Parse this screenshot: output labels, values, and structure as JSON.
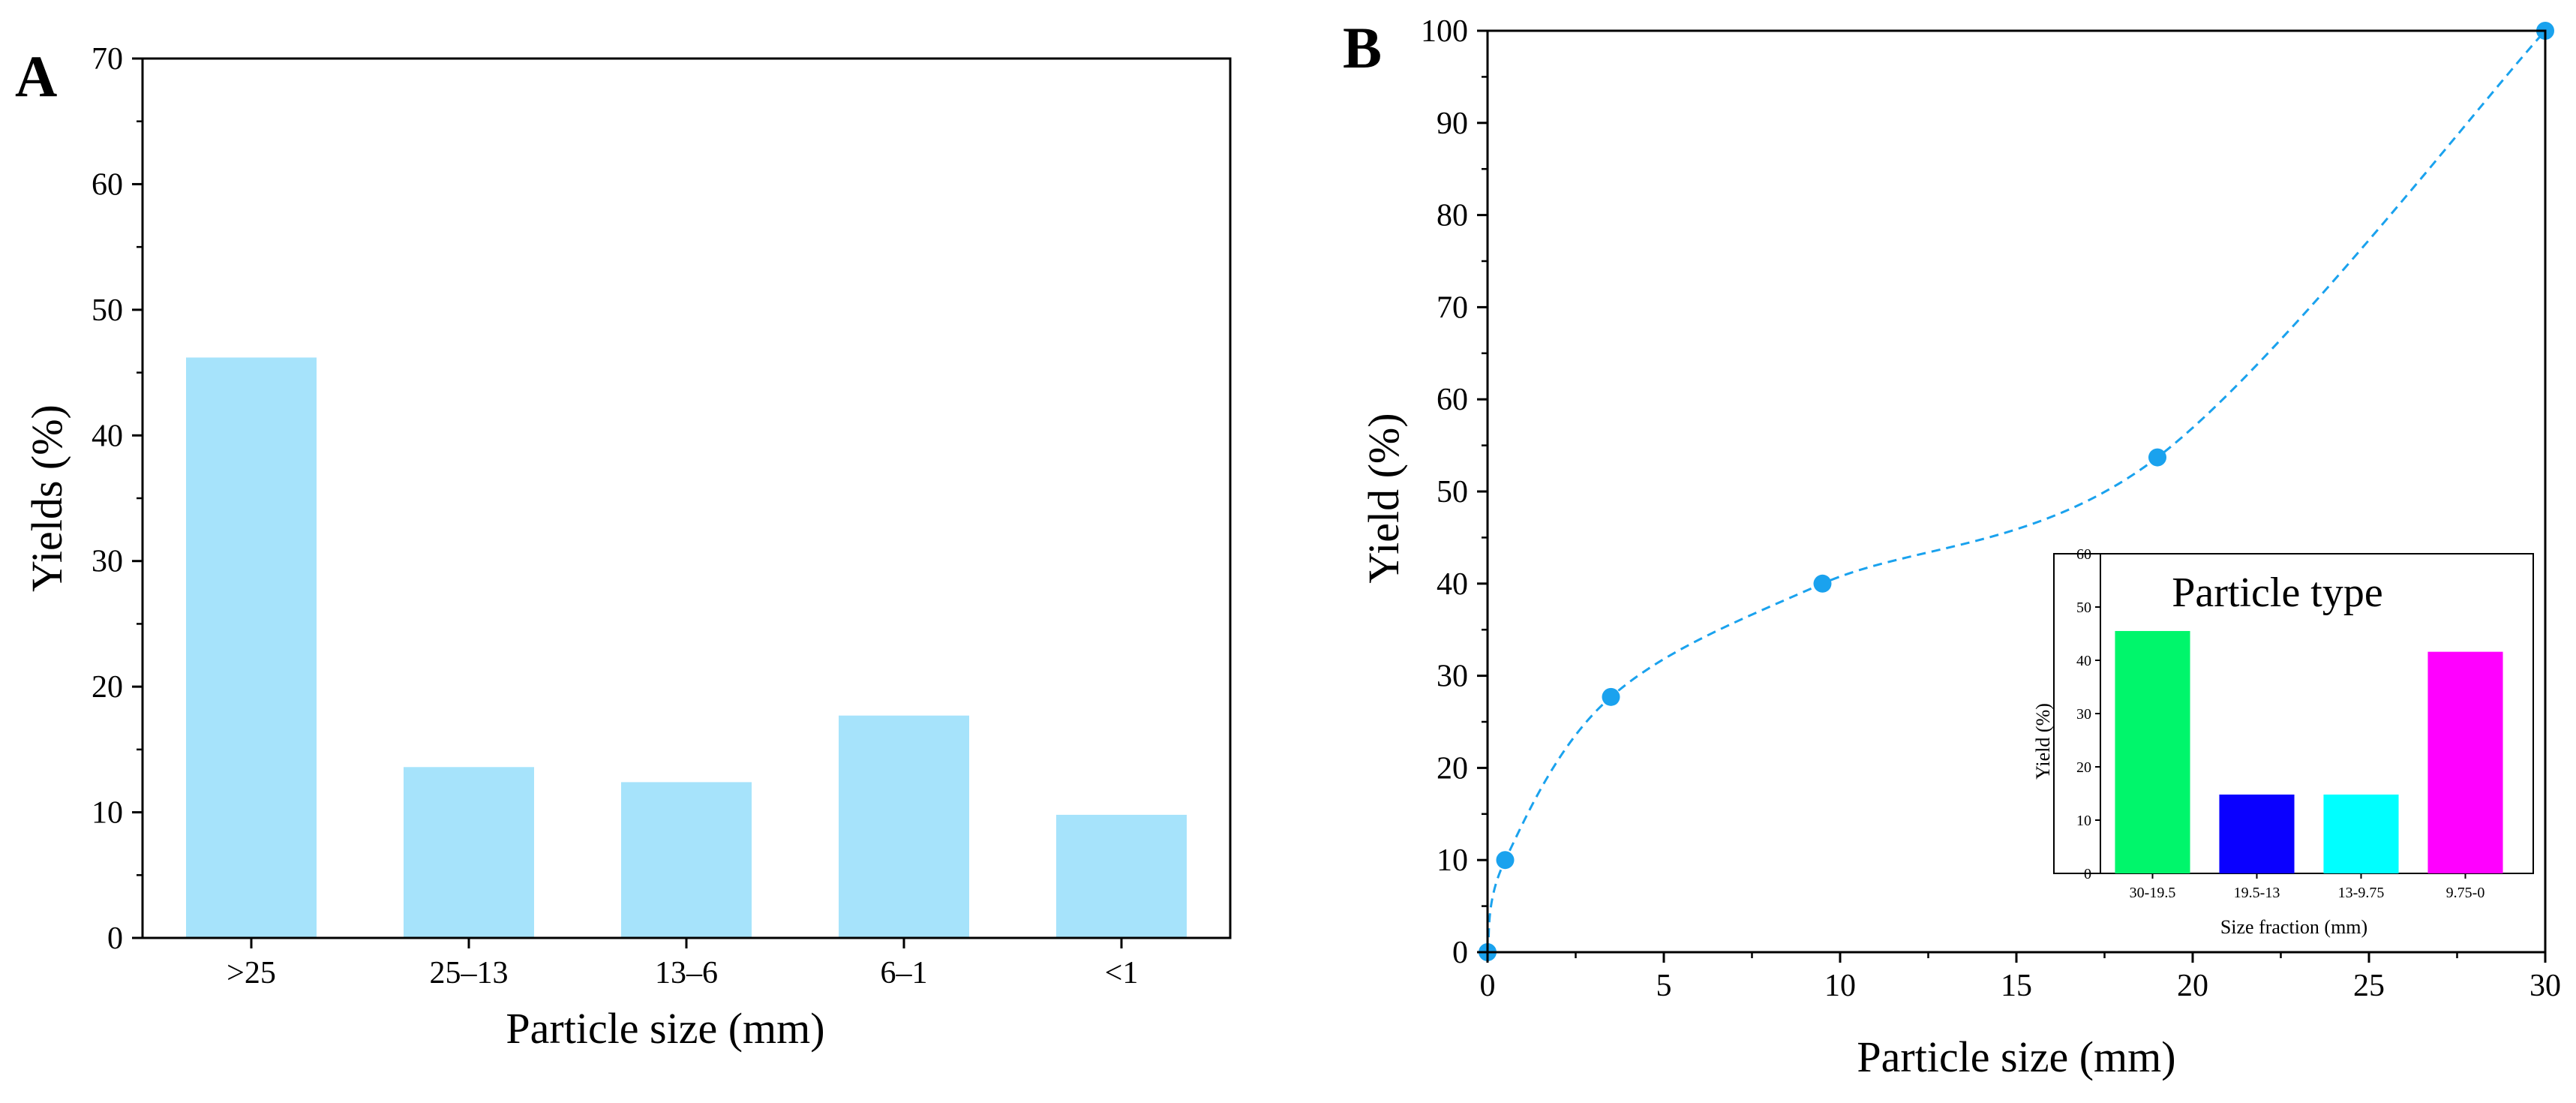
{
  "chart_data": [
    {
      "panel": "A",
      "type": "bar",
      "categories": [
        ">25",
        "25–13",
        "13–6",
        "6–1",
        "<1"
      ],
      "values": [
        46.2,
        13.6,
        12.4,
        17.7,
        9.8
      ],
      "xlabel": "Particle size (mm)",
      "ylabel": "Yields (%)",
      "ylim": [
        0,
        70
      ],
      "yticks": [
        "0",
        "10",
        "20",
        "30",
        "40",
        "50",
        "60",
        "70"
      ],
      "bar_color": "#a6e3fb"
    },
    {
      "panel": "B",
      "type": "line",
      "x": [
        0,
        0.5,
        3.5,
        9.5,
        19,
        30
      ],
      "y": [
        0,
        10,
        27.7,
        40,
        53.7,
        100
      ],
      "xlabel": "Particle size (mm)",
      "ylabel": "Yield (%)",
      "xlim": [
        0,
        30
      ],
      "ylim": [
        0,
        100
      ],
      "xticks": [
        "0",
        "5",
        "10",
        "15",
        "20",
        "25",
        "30"
      ],
      "yticks": [
        "0",
        "10",
        "20",
        "30",
        "40",
        "50",
        "60",
        "70",
        "80",
        "90",
        "100"
      ],
      "line_style": "dashed",
      "color": "#1aa2ee",
      "inset": {
        "type": "bar",
        "title": "Particle type",
        "categories": [
          "30-19.5",
          "19.5-13",
          "13-9.75",
          "9.75-0"
        ],
        "values": [
          45.5,
          14.8,
          14.8,
          41.6
        ],
        "colors": [
          "#00f66b",
          "#0a00ff",
          "#00ffff",
          "#ff00ff"
        ],
        "xlabel": "Size fraction (mm)",
        "ylabel": "Yield (%)",
        "ylim": [
          0,
          60
        ],
        "yticks": [
          "0",
          "10",
          "20",
          "30",
          "40",
          "50",
          "60"
        ]
      }
    }
  ]
}
